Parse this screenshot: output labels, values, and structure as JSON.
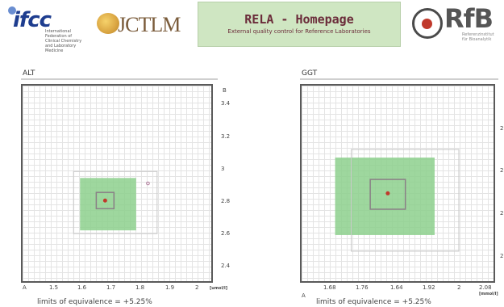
{
  "header": {
    "ifcc": {
      "word": "ifcc",
      "sub": "International Federation of Clinical Chemistry and Laboratory Medicine"
    },
    "jctlm": {
      "word": "JCTLM"
    },
    "rela": {
      "title": "RELA - Homepage",
      "subtitle": "External quality control for Reference Laboratories"
    },
    "rfb": {
      "word": "RfB",
      "sub": "Referenzinstitut für Bioanalytik"
    }
  },
  "panels": [
    {
      "title": "ALT",
      "corner_x_axis": "A",
      "corner_y_axis": "B",
      "x_unit": "[umol/l]",
      "x_ticks": [
        "1.5",
        "1.6",
        "1.7",
        "1.8",
        "1.9",
        "2"
      ],
      "y_ticks": [
        "3.4",
        "3.2",
        "3",
        "2.8",
        "2.6",
        "2.4"
      ],
      "limits_text": "limits of equivalence =  +5.25%"
    },
    {
      "title": "GGT",
      "corner_x_axis": "A",
      "corner_y_axis": "",
      "x_unit": "[mmol/l]",
      "x_ticks": [
        "1.68",
        "1.76",
        "1.64",
        "1.92",
        "2",
        "2.08"
      ],
      "y_ticks": [
        "2",
        "2",
        "2",
        "2"
      ],
      "limits_text": "limits of equivalence =  +5.25%"
    }
  ],
  "chart_data": [
    {
      "type": "scatter",
      "title": "ALT",
      "xlabel": "A",
      "ylabel": "B",
      "x_unit": "[umol/l]",
      "xlim": [
        1.4,
        2.05
      ],
      "ylim": [
        2.35,
        3.45
      ],
      "equivalence_region": {
        "x": [
          1.6,
          1.79
        ],
        "y": [
          2.64,
          2.93
        ]
      },
      "inner_box": {
        "x": [
          1.655,
          1.715
        ],
        "y": [
          2.76,
          2.85
        ]
      },
      "target_point": {
        "x": 1.685,
        "y": 2.805
      },
      "outlier_marker": {
        "x": 1.83,
        "y": 2.9
      },
      "limits_of_equivalence": "+5.25%",
      "colors": {
        "region": "#8dd08d",
        "point": "#c0392b",
        "box": "#8a7f86"
      }
    },
    {
      "type": "scatter",
      "title": "GGT",
      "xlabel": "A",
      "x_unit": "[mmol/l]",
      "x_ticks": [
        "1.68",
        "1.76",
        "1.64",
        "1.92",
        "2",
        "2.08"
      ],
      "equivalence_region_fraction": {
        "x": [
          0.18,
          0.69
        ],
        "y": [
          0.37,
          0.76
        ]
      },
      "inner_box_fraction": {
        "x": [
          0.36,
          0.54
        ],
        "y": [
          0.48,
          0.63
        ]
      },
      "target_point_fraction": {
        "x": 0.45,
        "y": 0.55
      },
      "limits_of_equivalence": "+5.25%",
      "colors": {
        "region": "#8dd08d",
        "point": "#c0392b",
        "box": "#8a7f86"
      }
    }
  ]
}
